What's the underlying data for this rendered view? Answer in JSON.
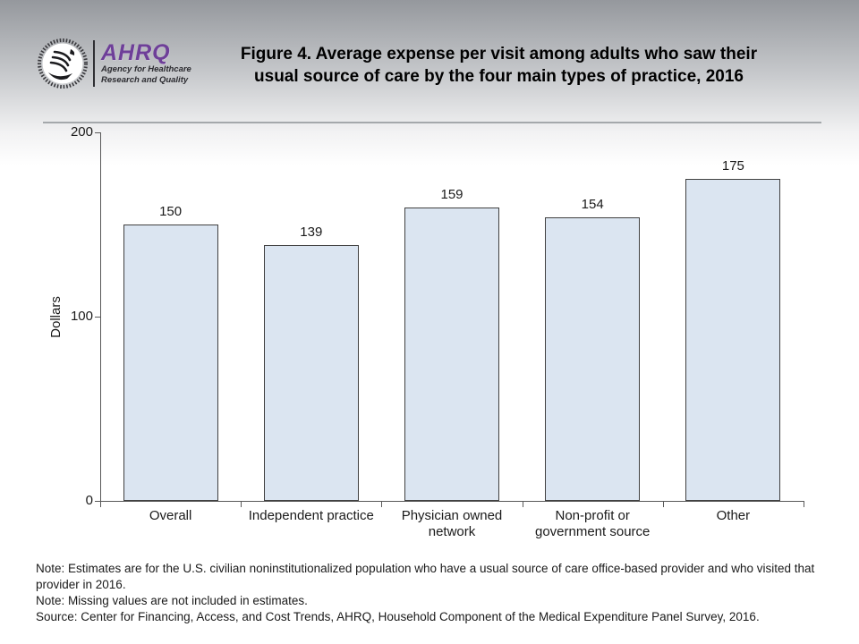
{
  "header": {
    "logo": {
      "seal_name": "hhs-eagle-seal",
      "ahrq": "AHRQ",
      "tagline_line1": "Agency for Healthcare",
      "tagline_line2": "Research and Quality"
    },
    "title_line1": "Figure 4. Average expense per visit among adults who saw their",
    "title_line2": "usual source of care by the four main types of practice, 2016"
  },
  "chart_data": {
    "type": "bar",
    "categories": [
      "Overall",
      "Independent practice",
      "Physician owned\nnetwork",
      "Non-profit or\ngovernment source",
      "Other"
    ],
    "values": [
      150,
      139,
      159,
      154,
      175
    ],
    "data_labels": [
      "150",
      "139",
      "159",
      "154",
      "175"
    ],
    "title": "Figure 4. Average expense per visit among adults who saw their usual source of care by the four main types of practice, 2016",
    "xlabel": "",
    "ylabel": "Dollars",
    "ylim": [
      0,
      200
    ],
    "yticks": [
      0,
      100,
      200
    ],
    "grid": false,
    "legend": "none",
    "bar_fill": "#dbe5f1",
    "bar_border": "#404040",
    "axis_color": "#595959"
  },
  "notes": {
    "note1": "Note: Estimates are for the U.S. civilian noninstitutionalized population who have a usual source of care office-based provider and who visited that provider in 2016.",
    "note2": "Note: Missing values are not included in estimates.",
    "source": "Source: Center for Financing, Access, and Cost Trends, AHRQ, Household Component of the Medical Expenditure Panel Survey, 2016."
  }
}
